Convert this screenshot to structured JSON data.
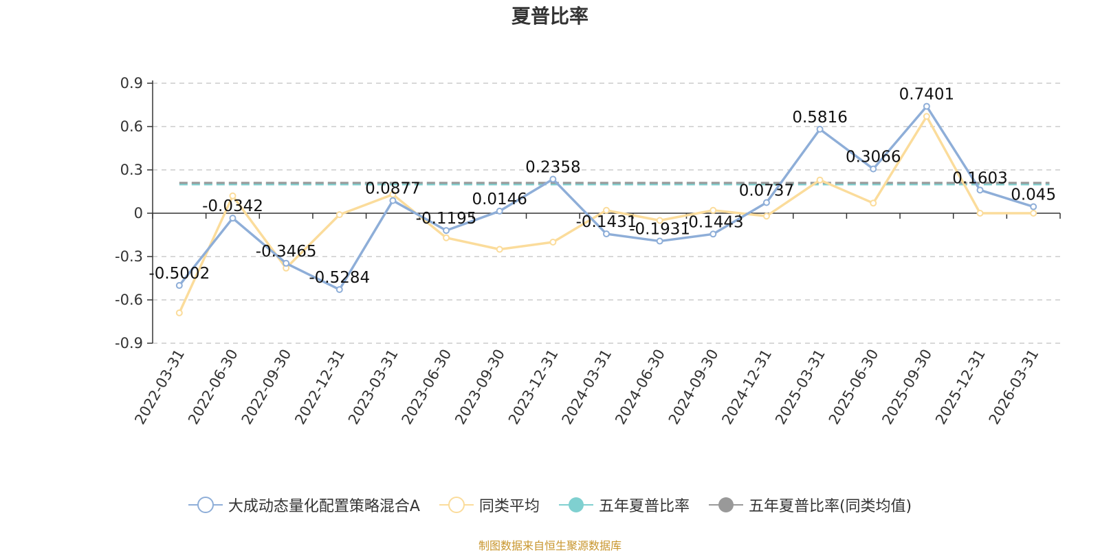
{
  "title": "夏普比率",
  "source_note": "制图数据来自恒生聚源数据库",
  "legend": [
    {
      "label": "大成动态量化配置策略混合A",
      "color": "#8eaed8",
      "marker": "hollow-circle"
    },
    {
      "label": "同类平均",
      "color": "#fbdc9b",
      "marker": "hollow-circle"
    },
    {
      "label": "五年夏普比率",
      "color": "#7fd0d0",
      "marker": "filled-circle"
    },
    {
      "label": "五年夏普比率(同类均值)",
      "color": "#999999",
      "marker": "filled-circle"
    }
  ],
  "chart_data": {
    "type": "line",
    "title": "夏普比率",
    "categories": [
      "2022-03-31",
      "2022-06-30",
      "2022-09-30",
      "2022-12-31",
      "2023-03-31",
      "2023-06-30",
      "2023-09-30",
      "2023-12-31",
      "2024-03-31",
      "2024-06-30",
      "2024-09-30",
      "2024-12-31",
      "2025-03-31",
      "2025-06-30",
      "2025-09-30",
      "2025-12-31",
      "2026-03-31"
    ],
    "ylim": [
      -0.9,
      0.9
    ],
    "yticks": [
      "0.9",
      "0.6",
      "0.3",
      "0",
      "-0.3",
      "-0.6",
      "-0.9"
    ],
    "ytick_values": [
      0.9,
      0.6,
      0.3,
      0,
      -0.3,
      -0.6,
      -0.9
    ],
    "grid": true,
    "legend_position": "bottom",
    "series": [
      {
        "name": "大成动态量化配置策略混合A",
        "color": "#8eaed8",
        "values": [
          -0.5002,
          -0.0342,
          -0.3465,
          -0.5284,
          0.0877,
          -0.1195,
          0.0146,
          0.2358,
          -0.1431,
          -0.1931,
          -0.1443,
          0.0737,
          0.5816,
          0.3066,
          0.7401,
          0.1603,
          0.045
        ],
        "labels": [
          "-0.5002",
          "-0.0342",
          "-0.3465",
          "-0.5284",
          "0.0877",
          "-0.1195",
          "0.0146",
          "0.2358",
          "-0.1431",
          "-0.1931",
          "-0.1443",
          "0.0737",
          "0.5816",
          "0.3066",
          "0.7401",
          "0.1603",
          "0.045"
        ]
      },
      {
        "name": "同类平均",
        "color": "#fbdc9b",
        "values": [
          -0.69,
          0.12,
          -0.38,
          -0.01,
          0.13,
          -0.17,
          -0.25,
          -0.2,
          0.02,
          -0.05,
          0.02,
          -0.02,
          0.23,
          0.07,
          0.67,
          0.0,
          0.0
        ]
      },
      {
        "name": "五年夏普比率",
        "color": "#7fd0d0",
        "constant": 0.2,
        "dashed": true
      },
      {
        "name": "五年夏普比率(同类均值)",
        "color": "#999999",
        "constant": 0.21,
        "dashed": true
      }
    ]
  }
}
